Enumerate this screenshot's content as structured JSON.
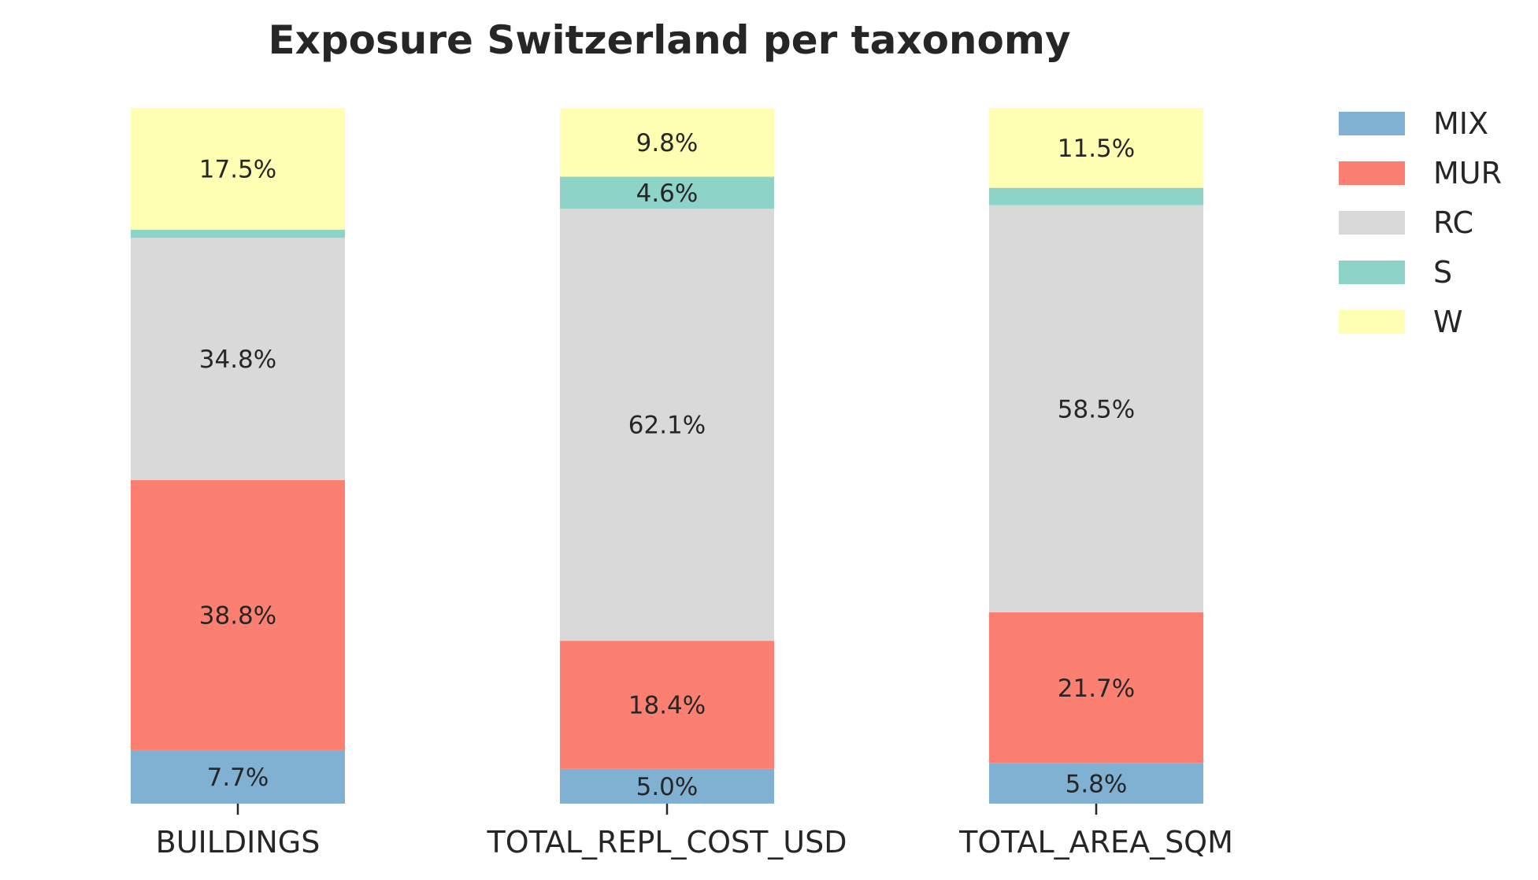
{
  "chart_data": {
    "type": "bar",
    "stacked": true,
    "title": "Exposure Switzerland per taxonomy",
    "categories": [
      "BUILDINGS",
      "TOTAL_REPL_COST_USD",
      "TOTAL_AREA_SQM"
    ],
    "ylim": [
      0,
      100
    ],
    "series": [
      {
        "name": "MIX",
        "color": "#80b1d3",
        "values": [
          7.7,
          5.0,
          5.8
        ],
        "labels": [
          "7.7%",
          "5.0%",
          "5.8%"
        ]
      },
      {
        "name": "MUR",
        "color": "#fb8072",
        "values": [
          38.8,
          18.4,
          21.7
        ],
        "labels": [
          "38.8%",
          "18.4%",
          "21.7%"
        ]
      },
      {
        "name": "RC",
        "color": "#d9d9d9",
        "values": [
          34.8,
          62.1,
          58.5
        ],
        "labels": [
          "34.8%",
          "62.1%",
          "58.5%"
        ]
      },
      {
        "name": "S",
        "color": "#8dd3c7",
        "values": [
          1.2,
          4.6,
          2.5
        ],
        "labels": [
          "",
          "4.6%",
          ""
        ]
      },
      {
        "name": "W",
        "color": "#ffffb3",
        "values": [
          17.5,
          9.8,
          11.5
        ],
        "labels": [
          "17.5%",
          "9.8%",
          "11.5%"
        ]
      }
    ],
    "legend_position": "top-right",
    "grid": false
  }
}
